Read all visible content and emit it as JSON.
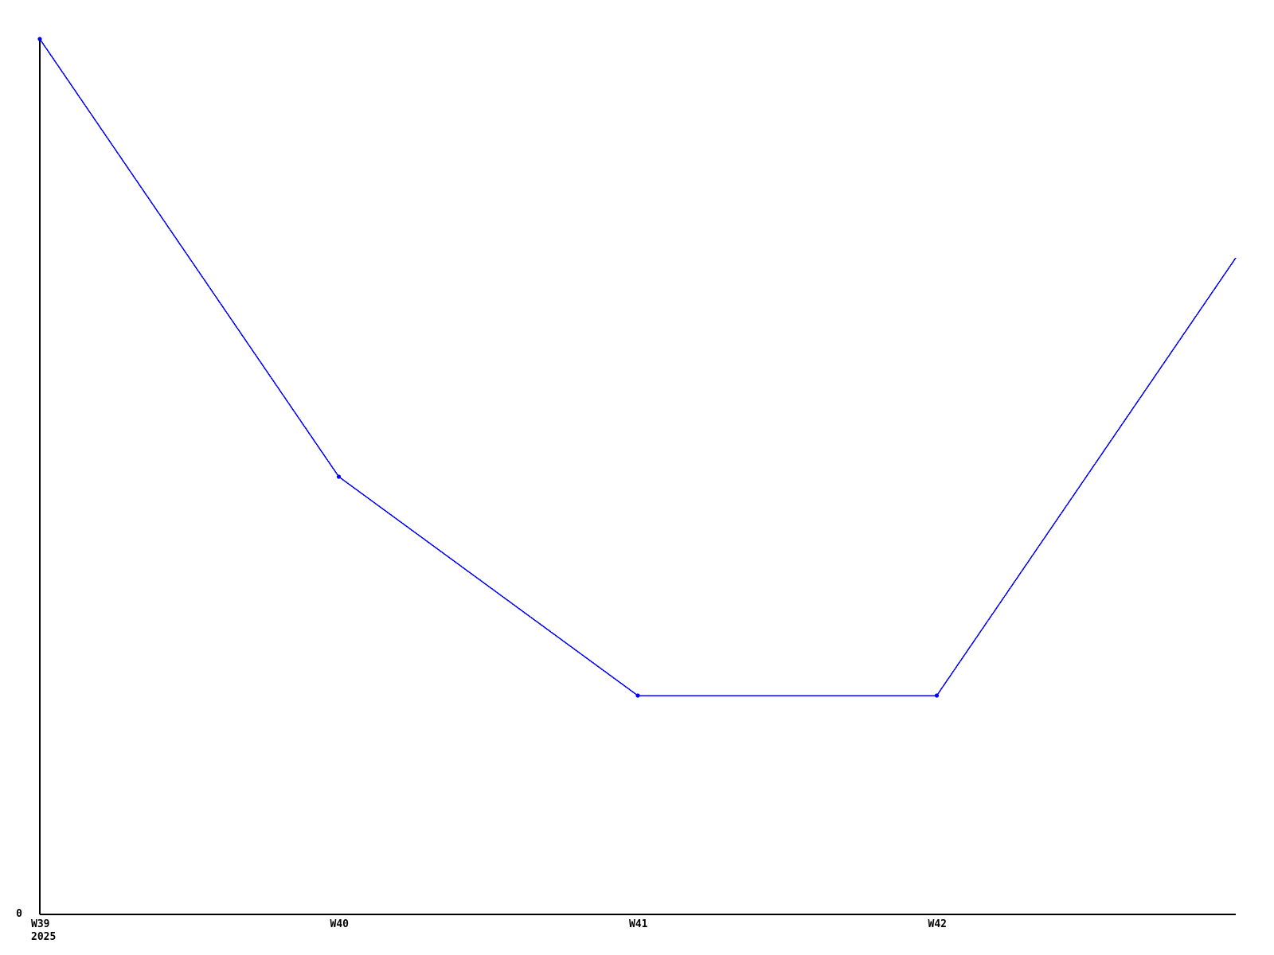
{
  "chart_data": {
    "type": "line",
    "title": "",
    "xlabel": "",
    "ylabel": "",
    "categories": [
      "W39",
      "W40",
      "W41",
      "W42",
      ""
    ],
    "values": [
      4,
      2,
      1,
      1,
      3
    ],
    "markers": [
      true,
      true,
      true,
      true,
      false
    ],
    "x_secondary_label": "2025",
    "y_tick_labels": [
      "0"
    ],
    "ylim": [
      0,
      4
    ],
    "grid": false,
    "legend": "none",
    "line_color": "#0000ff",
    "axis_color": "#000000",
    "background_color": "#ffffff"
  }
}
